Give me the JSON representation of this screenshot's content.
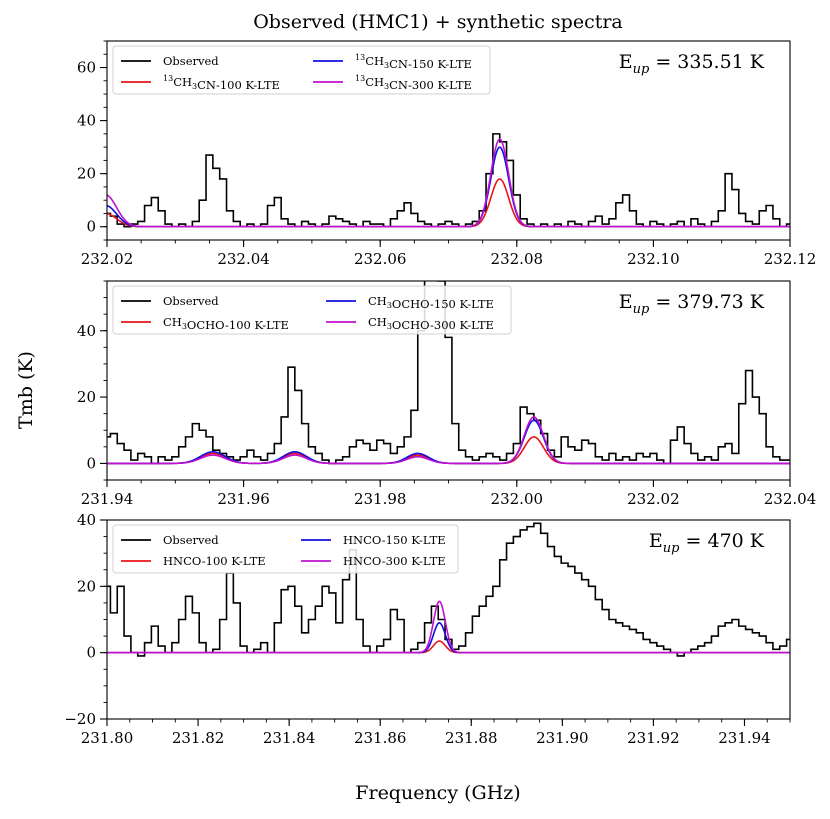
{
  "figure": {
    "title": "Observed (HMC1) + synthetic spectra",
    "xlabel": "Frequency (GHz)",
    "ylabel": "Tmb (K)"
  },
  "colors": {
    "observed": "#000000",
    "t100": "#e8141b",
    "t150": "#1010e0",
    "t300": "#c010d0"
  },
  "chart_data": [
    {
      "type": "line",
      "panel": 1,
      "title": "Observed (HMC1) + synthetic spectra",
      "eup_label": "E",
      "eup_sub": "up",
      "eup_value": " = 335.51 K",
      "xlim": [
        232.02,
        232.12
      ],
      "ylim": [
        -5,
        70
      ],
      "xticks": [
        232.02,
        232.04,
        232.06,
        232.08,
        232.1,
        232.12
      ],
      "xtick_labels": [
        "232.02",
        "232.04",
        "232.06",
        "232.08",
        "232.10",
        "232.12"
      ],
      "yticks": [
        0,
        20,
        40,
        60
      ],
      "ytick_labels": [
        "0",
        "20",
        "40",
        "60"
      ],
      "minor_ystep": 5,
      "minor_xstep": 0.005,
      "legend": {
        "columns": 2,
        "entries": [
          {
            "key": "observed",
            "sup": "",
            "label": "Observed"
          },
          {
            "key": "t100",
            "sup": "13",
            "label": "CH3CN-100 K-LTE"
          },
          {
            "key": "t150",
            "sup": "13",
            "label": "CH3CN-150 K-LTE"
          },
          {
            "key": "t300",
            "sup": "13",
            "label": "CH3CN-300 K-LTE"
          }
        ]
      },
      "observed_spectrum": {
        "x": [
          232.02,
          232.021,
          232.022,
          232.023,
          232.024,
          232.025,
          232.026,
          232.027,
          232.028,
          232.029,
          232.03,
          232.031,
          232.032,
          232.033,
          232.034,
          232.035,
          232.036,
          232.037,
          232.038,
          232.039,
          232.04,
          232.041,
          232.042,
          232.043,
          232.044,
          232.045,
          232.046,
          232.047,
          232.048,
          232.049,
          232.05,
          232.051,
          232.052,
          232.053,
          232.054,
          232.055,
          232.056,
          232.057,
          232.058,
          232.059,
          232.06,
          232.061,
          232.062,
          232.063,
          232.064,
          232.065,
          232.066,
          232.067,
          232.068,
          232.069,
          232.07,
          232.071,
          232.072,
          232.073,
          232.074,
          232.075,
          232.076,
          232.077,
          232.078,
          232.079,
          232.08,
          232.081,
          232.082,
          232.083,
          232.084,
          232.085,
          232.086,
          232.087,
          232.088,
          232.089,
          232.09,
          232.091,
          232.092,
          232.093,
          232.094,
          232.095,
          232.096,
          232.097,
          232.098,
          232.099,
          232.1,
          232.101,
          232.102,
          232.103,
          232.104,
          232.105,
          232.106,
          232.107,
          232.108,
          232.109,
          232.11,
          232.111,
          232.112,
          232.113,
          232.114,
          232.115,
          232.116,
          232.117,
          232.118,
          232.119,
          232.12
        ],
        "y": [
          5,
          4,
          1,
          0,
          1,
          2,
          8,
          11,
          6,
          1,
          0,
          1,
          0,
          2,
          10,
          27,
          22,
          18,
          6,
          2,
          0,
          1,
          0,
          1,
          8,
          11,
          3,
          1,
          0,
          2,
          1,
          0,
          1,
          4,
          3,
          2,
          1,
          0,
          2,
          1,
          1,
          0,
          3,
          6,
          9,
          5,
          2,
          1,
          0,
          1,
          2,
          1,
          0,
          1,
          2,
          6,
          20,
          35,
          32,
          25,
          12,
          3,
          1,
          0,
          1,
          0,
          1,
          0,
          2,
          1,
          0,
          2,
          4,
          1,
          3,
          9,
          12,
          6,
          1,
          0,
          2,
          1,
          0,
          1,
          2,
          0,
          3,
          1,
          0,
          2,
          6,
          20,
          14,
          5,
          2,
          1,
          6,
          8,
          3,
          0,
          1
        ]
      },
      "model_lines": {
        "centers": [
          232.0775
        ],
        "widths": [
          0.0013
        ],
        "edge_peak": {
          "t100": 5,
          "t150": 8,
          "t300": 12
        },
        "peaks": {
          "t100": [
            18
          ],
          "t150": [
            30
          ],
          "t300": [
            33
          ]
        }
      }
    },
    {
      "type": "line",
      "panel": 2,
      "eup_label": "E",
      "eup_sub": "up",
      "eup_value": " = 379.73 K",
      "xlim": [
        231.94,
        232.04
      ],
      "ylim": [
        -5,
        55
      ],
      "xticks": [
        231.94,
        231.96,
        231.98,
        232.0,
        232.02,
        232.04
      ],
      "xtick_labels": [
        "231.94",
        "231.96",
        "231.98",
        "232.00",
        "232.02",
        "232.04"
      ],
      "yticks": [
        0,
        20,
        40
      ],
      "ytick_labels": [
        "0",
        "20",
        "40"
      ],
      "minor_ystep": 5,
      "minor_xstep": 0.005,
      "legend": {
        "columns": 2,
        "entries": [
          {
            "key": "observed",
            "sup": "",
            "label": "Observed"
          },
          {
            "key": "t100",
            "sup": "",
            "label": "CH3OCHO-100 K-LTE"
          },
          {
            "key": "t150",
            "sup": "",
            "label": "CH3OCHO-150 K-LTE"
          },
          {
            "key": "t300",
            "sup": "",
            "label": "CH3OCHO-300 K-LTE"
          }
        ]
      },
      "observed_spectrum": {
        "x": [
          231.94,
          231.941,
          231.942,
          231.943,
          231.944,
          231.945,
          231.946,
          231.947,
          231.948,
          231.949,
          231.95,
          231.951,
          231.952,
          231.953,
          231.954,
          231.955,
          231.956,
          231.957,
          231.958,
          231.959,
          231.96,
          231.961,
          231.962,
          231.963,
          231.964,
          231.965,
          231.966,
          231.967,
          231.968,
          231.969,
          231.97,
          231.971,
          231.972,
          231.973,
          231.974,
          231.975,
          231.976,
          231.977,
          231.978,
          231.979,
          231.98,
          231.981,
          231.982,
          231.983,
          231.984,
          231.985,
          231.986,
          231.987,
          231.988,
          231.989,
          231.99,
          231.991,
          231.992,
          231.993,
          231.994,
          231.995,
          231.996,
          231.997,
          231.998,
          231.999,
          232.0,
          232.001,
          232.002,
          232.003,
          232.004,
          232.005,
          232.006,
          232.007,
          232.008,
          232.009,
          232.01,
          232.011,
          232.012,
          232.013,
          232.014,
          232.015,
          232.016,
          232.017,
          232.018,
          232.019,
          232.02,
          232.021,
          232.022,
          232.023,
          232.024,
          232.025,
          232.026,
          232.027,
          232.028,
          232.029,
          232.03,
          232.031,
          232.032,
          232.033,
          232.034,
          232.035,
          232.036,
          232.037,
          232.038,
          232.039,
          232.04
        ],
        "y": [
          8,
          9,
          6,
          4,
          1,
          3,
          2,
          0,
          2,
          1,
          2,
          5,
          8,
          12,
          10,
          8,
          4,
          3,
          2,
          1,
          2,
          4,
          2,
          1,
          3,
          6,
          14,
          29,
          22,
          12,
          5,
          3,
          1,
          0,
          1,
          2,
          5,
          7,
          6,
          4,
          7,
          6,
          3,
          5,
          8,
          16,
          40,
          62,
          58,
          55,
          38,
          12,
          4,
          2,
          1,
          2,
          3,
          2,
          1,
          3,
          6,
          17,
          15,
          13,
          9,
          4,
          2,
          8,
          5,
          4,
          7,
          6,
          2,
          1,
          3,
          1,
          2,
          1,
          3,
          2,
          3,
          1,
          0,
          7,
          11,
          6,
          3,
          1,
          2,
          1,
          5,
          6,
          3,
          18,
          28,
          20,
          15,
          5,
          2,
          1,
          1
        ]
      },
      "model_lines": {
        "centers": [
          231.9555,
          231.9675,
          231.9855,
          232.0025
        ],
        "widths": [
          0.0018,
          0.0017,
          0.0016,
          0.0014
        ],
        "edge_peak": {
          "t100": 0,
          "t150": 0,
          "t300": 0
        },
        "peaks": {
          "t100": [
            3,
            3,
            2.5,
            8
          ],
          "t150": [
            3.5,
            3.5,
            3,
            13
          ],
          "t300": [
            2.5,
            2.5,
            2,
            14
          ]
        }
      }
    },
    {
      "type": "line",
      "panel": 3,
      "eup_label": "E",
      "eup_sub": "up",
      "eup_value": " = 470 K",
      "xlim": [
        231.8,
        231.95
      ],
      "ylim": [
        -20,
        40
      ],
      "xticks": [
        231.8,
        231.82,
        231.84,
        231.86,
        231.88,
        231.9,
        231.92,
        231.94
      ],
      "xtick_labels": [
        "231.80",
        "231.82",
        "231.84",
        "231.86",
        "231.88",
        "231.90",
        "231.92",
        "231.94"
      ],
      "yticks": [
        -20,
        0,
        20,
        40
      ],
      "ytick_labels": [
        "−20",
        "0",
        "20",
        "40"
      ],
      "minor_ystep": 5,
      "minor_xstep": 0.005,
      "legend": {
        "columns": 2,
        "entries": [
          {
            "key": "observed",
            "sup": "",
            "label": "Observed"
          },
          {
            "key": "t100",
            "sup": "",
            "label": "HNCO-100 K-LTE"
          },
          {
            "key": "t150",
            "sup": "",
            "label": "HNCO-150 K-LTE"
          },
          {
            "key": "t300",
            "sup": "",
            "label": "HNCO-300 K-LTE"
          }
        ]
      },
      "observed_spectrum": {
        "x": [
          231.8,
          231.8015,
          231.803,
          231.8045,
          231.806,
          231.8075,
          231.809,
          231.8105,
          231.812,
          231.8135,
          231.815,
          231.8165,
          231.818,
          231.8195,
          231.821,
          231.8225,
          231.824,
          231.8255,
          231.827,
          231.8285,
          231.83,
          231.8315,
          231.833,
          231.8345,
          231.836,
          231.8375,
          231.839,
          231.8405,
          231.842,
          231.8435,
          231.845,
          231.8465,
          231.848,
          231.8495,
          231.851,
          231.8525,
          231.854,
          231.8555,
          231.857,
          231.8585,
          231.86,
          231.8615,
          231.863,
          231.8645,
          231.866,
          231.8675,
          231.869,
          231.8705,
          231.872,
          231.8735,
          231.875,
          231.8765,
          231.878,
          231.8795,
          231.881,
          231.8825,
          231.884,
          231.8855,
          231.887,
          231.8885,
          231.89,
          231.8915,
          231.893,
          231.8945,
          231.896,
          231.8975,
          231.899,
          231.9005,
          231.902,
          231.9035,
          231.905,
          231.9065,
          231.908,
          231.9095,
          231.911,
          231.9125,
          231.914,
          231.9155,
          231.917,
          231.9185,
          231.92,
          231.9215,
          231.923,
          231.9245,
          231.926,
          231.9275,
          231.929,
          231.9305,
          231.932,
          231.9335,
          231.935,
          231.9365,
          231.938,
          231.9395,
          231.941,
          231.9425,
          231.944,
          231.9455,
          231.947,
          231.9485,
          231.95
        ],
        "y": [
          20,
          12,
          20,
          5,
          0,
          -1,
          3,
          8,
          2,
          0,
          3,
          10,
          17,
          12,
          3,
          0,
          1,
          10,
          24,
          15,
          2,
          0,
          1,
          3,
          0,
          9,
          19,
          20,
          14,
          6,
          10,
          14,
          20,
          18,
          9,
          22,
          31,
          10,
          2,
          0,
          2,
          4,
          13,
          10,
          0,
          1,
          3,
          9,
          14,
          10,
          4,
          1,
          2,
          6,
          11,
          14,
          17,
          20,
          28,
          33,
          35,
          37,
          38,
          39,
          36,
          32,
          29,
          27,
          26,
          24,
          22,
          20,
          16,
          13,
          10,
          9,
          8,
          7,
          6,
          4,
          3,
          2,
          1,
          0,
          -1,
          0,
          1,
          2,
          3,
          5,
          8,
          9,
          10,
          8,
          7,
          6,
          5,
          3,
          1,
          2,
          4
        ]
      },
      "model_lines": {
        "centers": [
          231.873
        ],
        "widths": [
          0.0013
        ],
        "edge_peak": {
          "t100": 0,
          "t150": 0,
          "t300": 0
        },
        "peaks": {
          "t100": [
            3.5
          ],
          "t150": [
            9
          ],
          "t300": [
            15.5
          ]
        }
      }
    }
  ]
}
